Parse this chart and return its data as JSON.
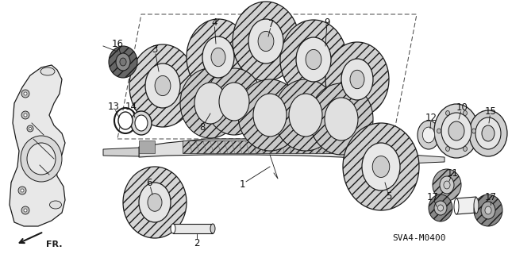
{
  "background_color": "#ffffff",
  "part_number": "SVA4-M0400",
  "line_color": "#1a1a1a",
  "gear_fill": "#e8e8e8",
  "gear_dark": "#555555",
  "gear_mid": "#999999",
  "case_fill": "#e5e5e5"
}
